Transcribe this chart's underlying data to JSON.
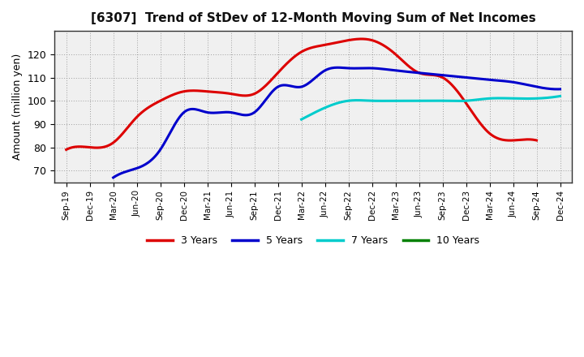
{
  "title": "[6307]  Trend of StDev of 12-Month Moving Sum of Net Incomes",
  "ylabel": "Amount (million yen)",
  "fig_background_color": "#ffffff",
  "plot_background_color": "#f0f0f0",
  "grid_color": "#888888",
  "x_labels": [
    "Sep-19",
    "Dec-19",
    "Mar-20",
    "Jun-20",
    "Sep-20",
    "Dec-20",
    "Mar-21",
    "Jun-21",
    "Sep-21",
    "Dec-21",
    "Mar-22",
    "Jun-22",
    "Sep-22",
    "Dec-22",
    "Mar-23",
    "Jun-23",
    "Sep-23",
    "Dec-23",
    "Mar-24",
    "Jun-24",
    "Sep-24",
    "Dec-24"
  ],
  "ylim": [
    65,
    130
  ],
  "yticks": [
    70,
    80,
    90,
    100,
    110,
    120
  ],
  "series": {
    "3 Years": {
      "color": "#dd0000",
      "data": [
        [
          "Sep-19",
          79
        ],
        [
          "Dec-19",
          80
        ],
        [
          "Mar-20",
          82
        ],
        [
          "Jun-20",
          93
        ],
        [
          "Sep-20",
          100
        ],
        [
          "Dec-20",
          104
        ],
        [
          "Mar-21",
          104
        ],
        [
          "Jun-21",
          103
        ],
        [
          "Sep-21",
          103
        ],
        [
          "Dec-21",
          112
        ],
        [
          "Mar-22",
          121
        ],
        [
          "Jun-22",
          124
        ],
        [
          "Sep-22",
          126
        ],
        [
          "Dec-22",
          126
        ],
        [
          "Mar-23",
          120
        ],
        [
          "Jun-23",
          112
        ],
        [
          "Sep-23",
          110
        ],
        [
          "Dec-23",
          99
        ],
        [
          "Mar-24",
          86
        ],
        [
          "Jun-24",
          83
        ],
        [
          "Sep-24",
          83
        ]
      ]
    },
    "5 Years": {
      "color": "#0000cc",
      "data": [
        [
          "Mar-20",
          67
        ],
        [
          "Jun-20",
          71
        ],
        [
          "Sep-20",
          79
        ],
        [
          "Dec-20",
          95
        ],
        [
          "Mar-21",
          95
        ],
        [
          "Jun-21",
          95
        ],
        [
          "Sep-21",
          95
        ],
        [
          "Dec-21",
          106
        ],
        [
          "Mar-22",
          106
        ],
        [
          "Jun-22",
          113
        ],
        [
          "Sep-22",
          114
        ],
        [
          "Dec-22",
          114
        ],
        [
          "Mar-23",
          113
        ],
        [
          "Jun-23",
          112
        ],
        [
          "Sep-23",
          111
        ],
        [
          "Dec-23",
          110
        ],
        [
          "Mar-24",
          109
        ],
        [
          "Jun-24",
          108
        ],
        [
          "Sep-24",
          106
        ],
        [
          "Dec-24",
          105
        ]
      ]
    },
    "7 Years": {
      "color": "#00cccc",
      "data": [
        [
          "Mar-22",
          92
        ],
        [
          "Jun-22",
          97
        ],
        [
          "Sep-22",
          100
        ],
        [
          "Dec-22",
          100
        ],
        [
          "Mar-23",
          100
        ],
        [
          "Jun-23",
          100
        ],
        [
          "Sep-23",
          100
        ],
        [
          "Dec-23",
          100
        ],
        [
          "Mar-24",
          101
        ],
        [
          "Jun-24",
          101
        ],
        [
          "Sep-24",
          101
        ],
        [
          "Dec-24",
          102
        ]
      ]
    },
    "10 Years": {
      "color": "#008000",
      "data": []
    }
  },
  "legend_entries": [
    "3 Years",
    "5 Years",
    "7 Years",
    "10 Years"
  ],
  "legend_colors": [
    "#dd0000",
    "#0000cc",
    "#00cccc",
    "#008000"
  ]
}
